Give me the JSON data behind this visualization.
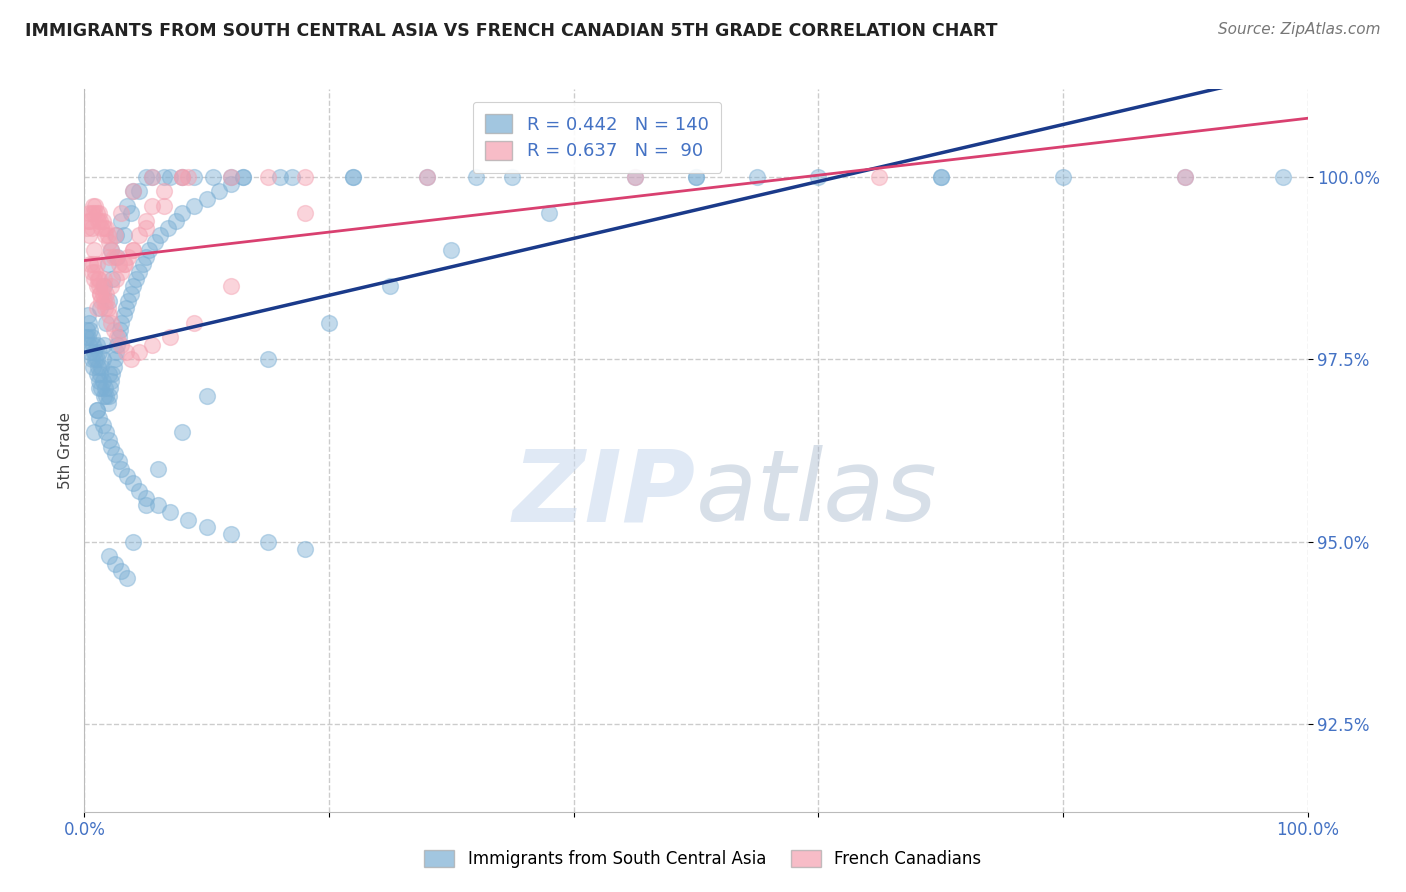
{
  "title": "IMMIGRANTS FROM SOUTH CENTRAL ASIA VS FRENCH CANADIAN 5TH GRADE CORRELATION CHART",
  "source": "Source: ZipAtlas.com",
  "ylabel": "5th Grade",
  "xlim": [
    0.0,
    100.0
  ],
  "ylim": [
    91.3,
    101.2
  ],
  "yticks": [
    92.5,
    95.0,
    97.5,
    100.0
  ],
  "ytick_labels": [
    "92.5%",
    "95.0%",
    "97.5%",
    "100.0%"
  ],
  "xticks": [
    0.0,
    20.0,
    40.0,
    60.0,
    80.0,
    100.0
  ],
  "xtick_labels": [
    "0.0%",
    "",
    "",
    "",
    "",
    "100.0%"
  ],
  "blue_R": 0.442,
  "blue_N": 140,
  "pink_R": 0.637,
  "pink_N": 90,
  "blue_color": "#7bafd4",
  "pink_color": "#f4a0b0",
  "blue_line_color": "#1a3a8a",
  "pink_line_color": "#d94070",
  "blue_label": "Immigrants from South Central Asia",
  "pink_label": "French Canadians",
  "title_color": "#222222",
  "axis_color": "#4472C4",
  "watermark_zip": "ZIP",
  "watermark_atlas": "atlas",
  "background_color": "#ffffff",
  "grid_color": "#cccccc",
  "blue_x": [
    0.1,
    0.2,
    0.3,
    0.3,
    0.4,
    0.4,
    0.5,
    0.5,
    0.6,
    0.6,
    0.7,
    0.7,
    0.8,
    0.9,
    1.0,
    1.0,
    1.0,
    1.1,
    1.2,
    1.2,
    1.3,
    1.4,
    1.5,
    1.5,
    1.6,
    1.7,
    1.8,
    1.9,
    2.0,
    2.0,
    2.1,
    2.2,
    2.3,
    2.4,
    2.5,
    2.6,
    2.7,
    2.8,
    2.9,
    3.0,
    3.2,
    3.4,
    3.6,
    3.8,
    4.0,
    4.2,
    4.5,
    4.8,
    5.0,
    5.3,
    5.8,
    6.2,
    6.8,
    7.5,
    8.0,
    9.0,
    10.0,
    11.0,
    12.0,
    13.0,
    1.0,
    1.2,
    1.5,
    1.8,
    2.0,
    2.2,
    2.5,
    2.8,
    3.0,
    3.5,
    4.0,
    4.5,
    5.0,
    6.0,
    7.0,
    8.5,
    10.0,
    12.0,
    15.0,
    18.0,
    1.3,
    1.6,
    1.9,
    2.2,
    2.6,
    3.0,
    3.5,
    4.0,
    5.0,
    6.5,
    8.0,
    10.5,
    13.0,
    17.0,
    22.0,
    28.0,
    35.0,
    45.0,
    55.0,
    70.0,
    2.0,
    2.5,
    3.0,
    3.5,
    4.0,
    5.0,
    6.0,
    8.0,
    10.0,
    15.0,
    20.0,
    25.0,
    30.0,
    38.0,
    50.0,
    60.0,
    70.0,
    80.0,
    90.0,
    98.0,
    0.8,
    1.0,
    1.2,
    1.4,
    1.6,
    1.8,
    2.0,
    2.3,
    2.7,
    3.2,
    3.8,
    4.5,
    5.5,
    7.0,
    9.0,
    12.0,
    16.0,
    22.0,
    32.0,
    50.0
  ],
  "blue_y": [
    97.8,
    97.9,
    97.8,
    98.1,
    97.7,
    98.0,
    97.6,
    97.9,
    97.5,
    97.8,
    97.4,
    97.7,
    97.6,
    97.5,
    97.3,
    97.5,
    97.7,
    97.4,
    97.6,
    97.2,
    97.3,
    97.1,
    97.2,
    97.5,
    97.0,
    97.1,
    97.0,
    96.9,
    97.0,
    97.3,
    97.1,
    97.2,
    97.3,
    97.4,
    97.5,
    97.6,
    97.7,
    97.8,
    97.9,
    98.0,
    98.1,
    98.2,
    98.3,
    98.4,
    98.5,
    98.6,
    98.7,
    98.8,
    98.9,
    99.0,
    99.1,
    99.2,
    99.3,
    99.4,
    99.5,
    99.6,
    99.7,
    99.8,
    99.9,
    100.0,
    96.8,
    96.7,
    96.6,
    96.5,
    96.4,
    96.3,
    96.2,
    96.1,
    96.0,
    95.9,
    95.8,
    95.7,
    95.6,
    95.5,
    95.4,
    95.3,
    95.2,
    95.1,
    95.0,
    94.9,
    98.2,
    98.5,
    98.8,
    99.0,
    99.2,
    99.4,
    99.6,
    99.8,
    100.0,
    100.0,
    100.0,
    100.0,
    100.0,
    100.0,
    100.0,
    100.0,
    100.0,
    100.0,
    100.0,
    100.0,
    94.8,
    94.7,
    94.6,
    94.5,
    95.0,
    95.5,
    96.0,
    96.5,
    97.0,
    97.5,
    98.0,
    98.5,
    99.0,
    99.5,
    100.0,
    100.0,
    100.0,
    100.0,
    100.0,
    100.0,
    96.5,
    96.8,
    97.1,
    97.4,
    97.7,
    98.0,
    98.3,
    98.6,
    98.9,
    99.2,
    99.5,
    99.8,
    100.0,
    100.0,
    100.0,
    100.0,
    100.0,
    100.0,
    100.0,
    100.0
  ],
  "pink_x": [
    0.2,
    0.3,
    0.4,
    0.5,
    0.6,
    0.7,
    0.8,
    0.9,
    1.0,
    1.1,
    1.2,
    1.3,
    1.4,
    1.5,
    1.6,
    1.7,
    1.8,
    1.9,
    2.0,
    2.2,
    2.4,
    2.6,
    2.8,
    3.0,
    3.3,
    3.6,
    4.0,
    4.5,
    5.0,
    5.5,
    6.5,
    8.0,
    0.5,
    0.6,
    0.7,
    0.8,
    0.9,
    1.0,
    1.1,
    1.2,
    1.3,
    1.4,
    1.5,
    1.6,
    1.7,
    1.8,
    1.9,
    2.0,
    2.2,
    2.4,
    2.7,
    3.0,
    3.4,
    3.8,
    4.5,
    5.5,
    7.0,
    9.0,
    12.0,
    18.0,
    0.4,
    0.6,
    0.8,
    1.0,
    1.2,
    1.5,
    1.8,
    2.2,
    2.6,
    3.2,
    4.0,
    5.0,
    6.5,
    8.5,
    12.0,
    18.0,
    28.0,
    45.0,
    65.0,
    90.0,
    1.0,
    1.3,
    1.6,
    2.0,
    2.5,
    3.0,
    4.0,
    5.5,
    8.0,
    15.0
  ],
  "pink_y": [
    99.3,
    99.4,
    99.5,
    99.4,
    99.5,
    99.6,
    99.5,
    99.6,
    99.5,
    99.4,
    99.5,
    99.4,
    99.3,
    99.4,
    99.3,
    99.2,
    99.3,
    99.2,
    99.1,
    99.0,
    98.9,
    98.9,
    98.8,
    98.7,
    98.8,
    98.9,
    99.0,
    99.2,
    99.4,
    99.6,
    99.8,
    100.0,
    98.8,
    98.7,
    98.8,
    98.6,
    98.7,
    98.5,
    98.6,
    98.5,
    98.4,
    98.3,
    98.4,
    98.3,
    98.2,
    98.3,
    98.2,
    98.1,
    98.0,
    97.9,
    97.8,
    97.7,
    97.6,
    97.5,
    97.6,
    97.7,
    97.8,
    98.0,
    98.5,
    99.5,
    99.2,
    99.3,
    99.0,
    98.8,
    98.6,
    98.5,
    98.4,
    98.5,
    98.6,
    98.8,
    99.0,
    99.3,
    99.6,
    100.0,
    100.0,
    100.0,
    100.0,
    100.0,
    100.0,
    100.0,
    98.2,
    98.4,
    98.6,
    98.9,
    99.2,
    99.5,
    99.8,
    100.0,
    100.0,
    100.0
  ]
}
